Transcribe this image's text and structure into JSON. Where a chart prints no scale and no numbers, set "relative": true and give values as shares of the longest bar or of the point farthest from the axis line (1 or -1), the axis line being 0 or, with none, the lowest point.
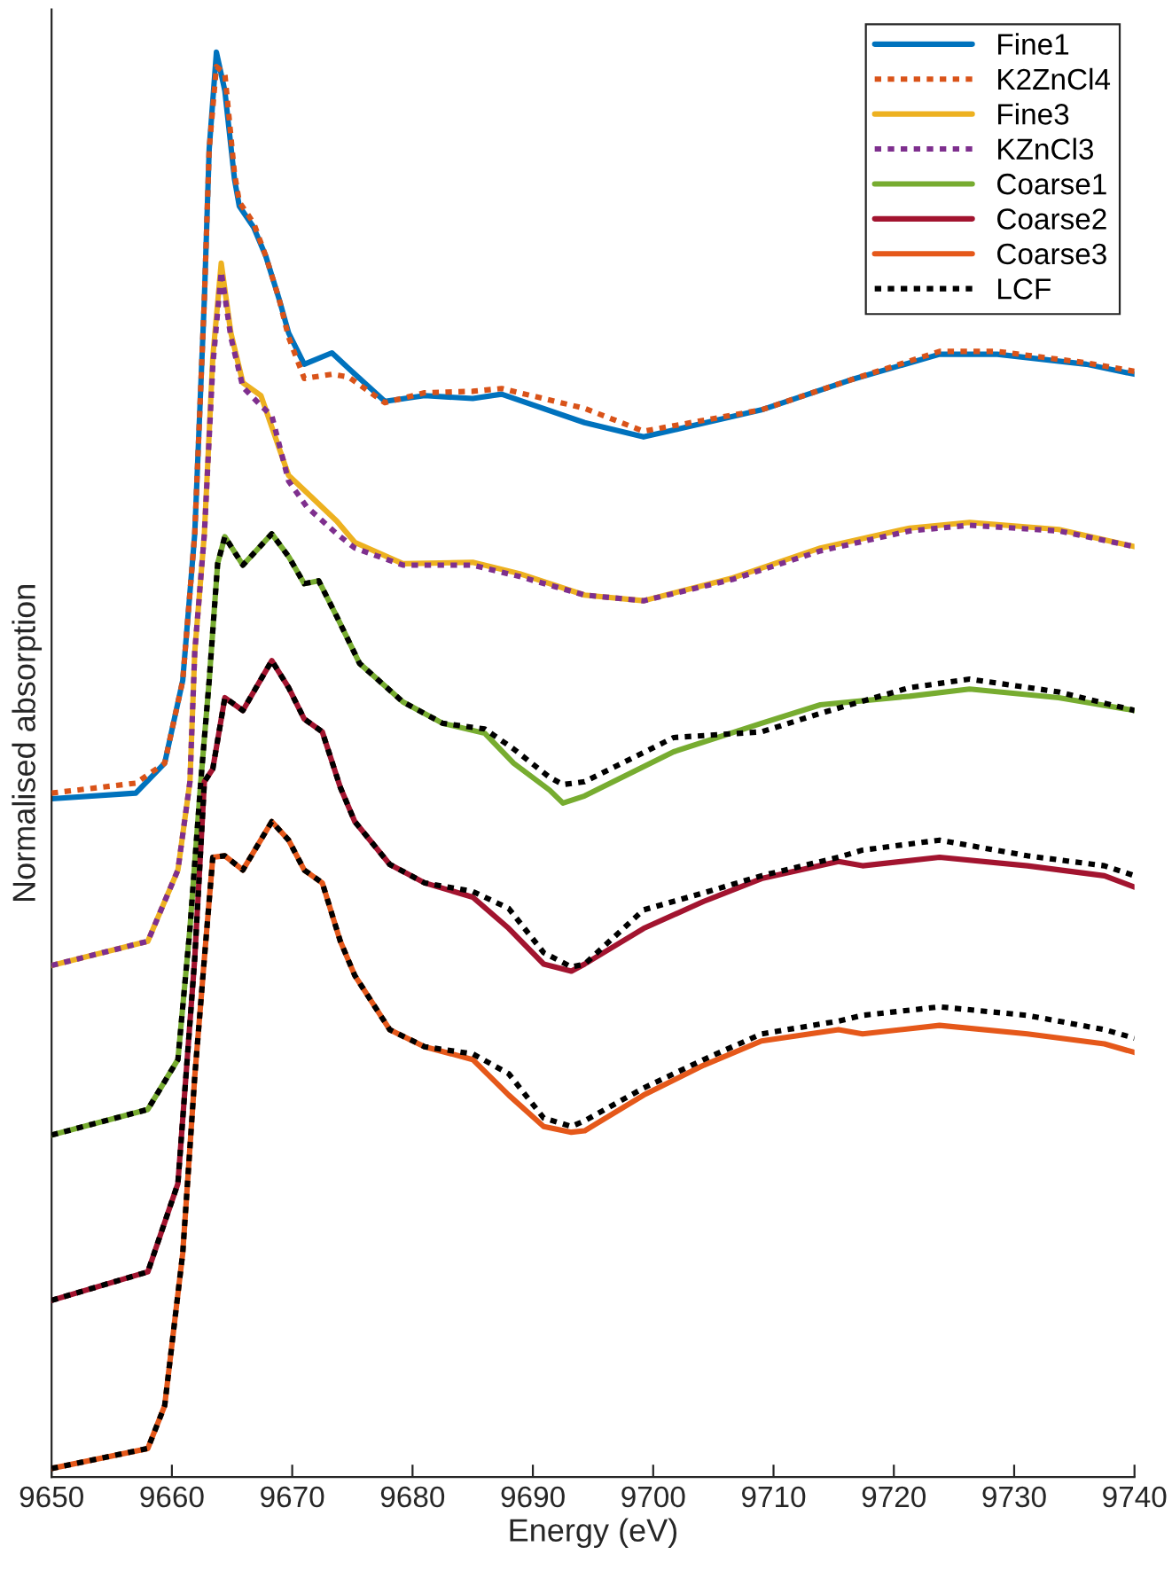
{
  "chart_data": {
    "type": "line",
    "relative": true,
    "xlabel": "Energy (eV)",
    "ylabel": "Normalised absorption",
    "xlim": [
      9650,
      9740
    ],
    "xticks": [
      9650,
      9660,
      9670,
      9680,
      9690,
      9700,
      9710,
      9720,
      9730,
      9740
    ],
    "tick_labels": "x",
    "grid": false,
    "legend": "top right",
    "marker": "none",
    "series": [
      {
        "name": "Fine1",
        "color": "#0072bd",
        "line_style": "solid",
        "x": [
          9650,
          9657,
          9659.4,
          9660.9,
          9661.9,
          9662.7,
          9663.1,
          9663.7,
          9664.4,
          9665.2,
          9665.6,
          9666.8,
          9667.8,
          9668.9,
          9669.7,
          9671,
          9673.3,
          9674.7,
          9677.7,
          9681,
          9685,
          9687.4,
          9694.3,
          9699.2,
          9709,
          9716.4,
          9723.8,
          9728.6,
          9736,
          9740
        ],
        "values": [
          0.476,
          0.48,
          0.501,
          0.559,
          0.662,
          0.827,
          0.932,
          1.0,
          0.973,
          0.911,
          0.892,
          0.877,
          0.857,
          0.827,
          0.803,
          0.781,
          0.789,
          0.778,
          0.755,
          0.759,
          0.757,
          0.76,
          0.74,
          0.73,
          0.749,
          0.77,
          0.788,
          0.788,
          0.781,
          0.774
        ]
      },
      {
        "name": "K2ZnCl4",
        "color": "#d95319",
        "line_style": "dotted",
        "x": [
          9650,
          9657,
          9659.4,
          9660.9,
          9661.9,
          9662.7,
          9663.1,
          9663.7,
          9664.4,
          9665.2,
          9665.6,
          9666.8,
          9667.8,
          9668.9,
          9669.7,
          9671,
          9673.3,
          9674.7,
          9677.7,
          9681,
          9685,
          9687.4,
          9694.3,
          9699.2,
          9709,
          9716.4,
          9723.8,
          9728.6,
          9736,
          9740
        ],
        "values": [
          0.48,
          0.487,
          0.501,
          0.559,
          0.662,
          0.827,
          0.932,
          0.99,
          0.985,
          0.915,
          0.895,
          0.88,
          0.857,
          0.827,
          0.8,
          0.771,
          0.774,
          0.772,
          0.754,
          0.761,
          0.762,
          0.764,
          0.75,
          0.734,
          0.749,
          0.77,
          0.79,
          0.79,
          0.782,
          0.776
        ]
      },
      {
        "name": "Fine3",
        "color": "#edb120",
        "line_style": "solid",
        "x": [
          9650,
          9658,
          9660.5,
          9661.5,
          9661.9,
          9662.7,
          9663.4,
          9664.1,
          9664.9,
          9665.9,
          9667.4,
          9668.3,
          9669.7,
          9671.2,
          9673.7,
          9675.2,
          9679.2,
          9685,
          9688.9,
          9694.3,
          9699.2,
          9706.6,
          9713.9,
          9721.3,
          9726.3,
          9733.7,
          9740
        ],
        "values": [
          0.359,
          0.376,
          0.426,
          0.488,
          0.579,
          0.662,
          0.786,
          0.852,
          0.803,
          0.768,
          0.759,
          0.737,
          0.703,
          0.691,
          0.671,
          0.656,
          0.641,
          0.642,
          0.634,
          0.619,
          0.615,
          0.631,
          0.652,
          0.666,
          0.67,
          0.665,
          0.653
        ]
      },
      {
        "name": "KZnCl3",
        "color": "#7e2f8e",
        "line_style": "dotted",
        "x": [
          9650,
          9658,
          9660.5,
          9661.5,
          9661.9,
          9662.7,
          9663.4,
          9664.1,
          9664.9,
          9665.9,
          9667.4,
          9668.3,
          9669.7,
          9671.2,
          9673.7,
          9675.2,
          9679.2,
          9685,
          9688.9,
          9694.3,
          9699.2,
          9706.6,
          9713.9,
          9721.3,
          9726.3,
          9733.7,
          9740
        ],
        "values": [
          0.359,
          0.376,
          0.426,
          0.488,
          0.579,
          0.662,
          0.78,
          0.846,
          0.8,
          0.765,
          0.752,
          0.745,
          0.699,
          0.681,
          0.662,
          0.652,
          0.64,
          0.64,
          0.632,
          0.619,
          0.615,
          0.63,
          0.65,
          0.664,
          0.668,
          0.664,
          0.653
        ]
      },
      {
        "name": "Coarse1",
        "color": "#77ac30",
        "line_style": "solid",
        "x": [
          9650,
          9658,
          9660.5,
          9661.5,
          9662.4,
          9663.1,
          9663.8,
          9664.4,
          9665.9,
          9668.3,
          9669.7,
          9671,
          9672.2,
          9673.7,
          9675.6,
          9679.2,
          9682.5,
          9686,
          9688.4,
          9691.4,
          9692.5,
          9694.3,
          9701.7,
          9709,
          9713.9,
          9721.3,
          9726.3,
          9733.7,
          9740
        ],
        "values": [
          0.24,
          0.258,
          0.293,
          0.385,
          0.488,
          0.559,
          0.641,
          0.66,
          0.64,
          0.662,
          0.646,
          0.627,
          0.629,
          0.604,
          0.571,
          0.544,
          0.529,
          0.522,
          0.501,
          0.482,
          0.473,
          0.478,
          0.509,
          0.529,
          0.542,
          0.548,
          0.553,
          0.547,
          0.538
        ]
      },
      {
        "name": "Coarse2",
        "color": "#a2142f",
        "line_style": "solid",
        "x": [
          9650,
          9658,
          9660.5,
          9661.9,
          9662.7,
          9663.4,
          9664.4,
          9665.9,
          9668.3,
          9669.7,
          9671,
          9672.5,
          9674,
          9675.2,
          9678.1,
          9681,
          9685,
          9688,
          9690.9,
          9693.2,
          9694.3,
          9699.2,
          9704.2,
          9709,
          9715.4,
          9717.4,
          9723.8,
          9731.1,
          9737.5,
          9740
        ],
        "values": [
          0.124,
          0.144,
          0.206,
          0.364,
          0.488,
          0.497,
          0.547,
          0.538,
          0.573,
          0.554,
          0.532,
          0.523,
          0.484,
          0.46,
          0.43,
          0.417,
          0.407,
          0.385,
          0.36,
          0.355,
          0.36,
          0.385,
          0.404,
          0.42,
          0.432,
          0.429,
          0.435,
          0.429,
          0.422,
          0.414
        ]
      },
      {
        "name": "Coarse3",
        "color": "#e5581a",
        "line_style": "solid",
        "x": [
          9650,
          9658,
          9659.4,
          9660.9,
          9661.9,
          9662.7,
          9663.4,
          9664.4,
          9665.9,
          9668.3,
          9669.7,
          9671,
          9672.5,
          9674,
          9675.2,
          9678.1,
          9681,
          9685,
          9688,
          9690.9,
          9693.2,
          9694.3,
          9699.2,
          9704.2,
          9709,
          9715.4,
          9717.4,
          9723.8,
          9731.1,
          9737.5,
          9740
        ],
        "values": [
          0.006,
          0.02,
          0.05,
          0.157,
          0.281,
          0.364,
          0.435,
          0.436,
          0.426,
          0.46,
          0.447,
          0.426,
          0.417,
          0.376,
          0.352,
          0.314,
          0.302,
          0.293,
          0.268,
          0.246,
          0.242,
          0.243,
          0.268,
          0.289,
          0.306,
          0.314,
          0.311,
          0.317,
          0.311,
          0.304,
          0.298
        ]
      },
      {
        "name": "LCF",
        "color": "#000000",
        "line_style": "dotted",
        "x": [
          9650,
          9658,
          9660.5,
          9661.5,
          9662.4,
          9663.1,
          9663.8,
          9664.4,
          9665.9,
          9668.3,
          9669.7,
          9671,
          9672.2,
          9673.7,
          9675.6,
          9679.2,
          9682.5,
          9686,
          9688.4,
          9691.4,
          9692.5,
          9694.3,
          9701.7,
          9709,
          9713.9,
          9721.3,
          9726.3,
          9733.7,
          9740
        ],
        "values": [
          0.24,
          0.258,
          0.293,
          0.385,
          0.488,
          0.559,
          0.641,
          0.66,
          0.64,
          0.662,
          0.646,
          0.627,
          0.629,
          0.604,
          0.571,
          0.544,
          0.529,
          0.525,
          0.511,
          0.491,
          0.486,
          0.488,
          0.519,
          0.523,
          0.536,
          0.554,
          0.56,
          0.551,
          0.538
        ]
      },
      {
        "color": "#000000",
        "line_style": "dotted",
        "x": [
          9650,
          9658,
          9660.5,
          9661.9,
          9662.7,
          9663.4,
          9664.4,
          9665.9,
          9668.3,
          9669.7,
          9671,
          9672.5,
          9674,
          9675.2,
          9678.1,
          9681,
          9685,
          9688,
          9690.9,
          9693.2,
          9694.3,
          9699.2,
          9704.2,
          9709,
          9715.4,
          9717.4,
          9723.8,
          9731.1,
          9737.5,
          9740
        ],
        "values": [
          0.124,
          0.144,
          0.206,
          0.364,
          0.488,
          0.497,
          0.547,
          0.538,
          0.573,
          0.554,
          0.532,
          0.523,
          0.484,
          0.46,
          0.43,
          0.417,
          0.411,
          0.399,
          0.368,
          0.358,
          0.36,
          0.398,
          0.41,
          0.422,
          0.435,
          0.44,
          0.447,
          0.436,
          0.429,
          0.422
        ]
      },
      {
        "color": "#000000",
        "line_style": "dotted",
        "x": [
          9650,
          9658,
          9659.4,
          9660.9,
          9661.9,
          9662.7,
          9663.4,
          9664.4,
          9665.9,
          9668.3,
          9669.7,
          9671,
          9672.5,
          9674,
          9675.2,
          9678.1,
          9681,
          9685,
          9688,
          9690.9,
          9693.2,
          9694.3,
          9699.2,
          9704.2,
          9709,
          9715.4,
          9717.4,
          9723.8,
          9731.1,
          9737.5,
          9740
        ],
        "values": [
          0.006,
          0.02,
          0.05,
          0.157,
          0.281,
          0.364,
          0.435,
          0.436,
          0.426,
          0.46,
          0.447,
          0.426,
          0.417,
          0.376,
          0.352,
          0.314,
          0.302,
          0.297,
          0.283,
          0.252,
          0.246,
          0.25,
          0.273,
          0.293,
          0.311,
          0.32,
          0.324,
          0.33,
          0.324,
          0.314,
          0.308
        ]
      }
    ]
  }
}
